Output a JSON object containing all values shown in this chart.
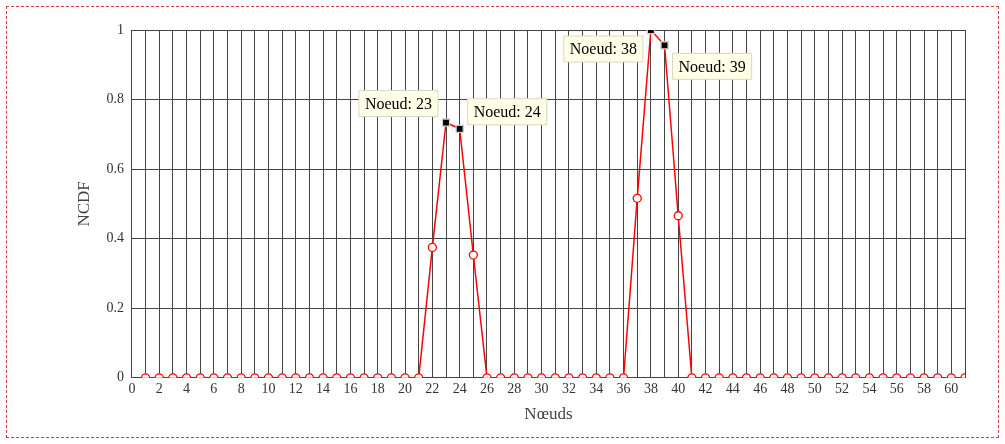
{
  "chart_data": {
    "type": "line",
    "xlabel": "Nœuds",
    "ylabel": "NCDF",
    "x": [
      1,
      2,
      3,
      4,
      5,
      6,
      7,
      8,
      9,
      10,
      11,
      12,
      13,
      14,
      15,
      16,
      17,
      18,
      19,
      20,
      21,
      22,
      23,
      24,
      25,
      26,
      27,
      28,
      29,
      30,
      31,
      32,
      33,
      34,
      35,
      36,
      37,
      38,
      39,
      40,
      41,
      42,
      43,
      44,
      45,
      46,
      47,
      48,
      49,
      50,
      51,
      52,
      53,
      54,
      55,
      56,
      57,
      58,
      59,
      60,
      61
    ],
    "series": [
      {
        "color": "#ff0000",
        "values": [
          0,
          0,
          0,
          0,
          0,
          0,
          0,
          0,
          0,
          0,
          0,
          0,
          0,
          0,
          0,
          0,
          0,
          0,
          0,
          0,
          0,
          0.375,
          0.734,
          0.716,
          0.353,
          0,
          0,
          0,
          0,
          0,
          0,
          0,
          0,
          0,
          0,
          0,
          0.516,
          1,
          0.956,
          0.466,
          0,
          0,
          0,
          0,
          0,
          0,
          0,
          0,
          0,
          0,
          0,
          0,
          0,
          0,
          0,
          0,
          0,
          0,
          0,
          0,
          0
        ]
      }
    ],
    "xlim": [
      0,
      61
    ],
    "xticks": [
      0,
      {
        "value": 1,
        "label": null
      },
      2,
      {
        "value": 3,
        "label": null
      },
      4,
      {
        "value": 5,
        "label": null
      },
      6,
      {
        "value": 7,
        "label": null
      },
      8,
      {
        "value": 9,
        "label": null
      },
      10,
      {
        "value": 11,
        "label": null
      },
      12,
      {
        "value": 13,
        "label": null
      },
      14,
      {
        "value": 15,
        "label": null
      },
      16,
      {
        "value": 17,
        "label": null
      },
      18,
      {
        "value": 19,
        "label": null
      },
      20,
      {
        "value": 21,
        "label": null
      },
      22,
      {
        "value": 23,
        "label": null
      },
      24,
      {
        "value": 25,
        "label": null
      },
      26,
      {
        "value": 27,
        "label": null
      },
      28,
      {
        "value": 29,
        "label": null
      },
      30,
      {
        "value": 31,
        "label": null
      },
      32,
      {
        "value": 33,
        "label": null
      },
      34,
      {
        "value": 35,
        "label": null
      },
      36,
      {
        "value": 37,
        "label": null
      },
      38,
      {
        "value": 39,
        "label": null
      },
      40,
      {
        "value": 41,
        "label": null
      },
      42,
      {
        "value": 43,
        "label": null
      },
      44,
      {
        "value": 45,
        "label": null
      },
      46,
      {
        "value": 47,
        "label": null
      },
      48,
      {
        "value": 49,
        "label": null
      },
      50,
      {
        "value": 51,
        "label": null
      },
      52,
      {
        "value": 53,
        "label": null
      },
      54,
      {
        "value": 55,
        "label": null
      },
      56,
      {
        "value": 57,
        "label": null
      },
      58,
      {
        "value": 59,
        "label": null
      },
      60,
      {
        "value": 61,
        "label": null
      }
    ],
    "ylim": [
      0,
      1
    ],
    "yticks": [
      0,
      0.2,
      0.4,
      0.6,
      0.8,
      1
    ],
    "grid": true,
    "legend": false,
    "marker": "circle",
    "line_style": "solid",
    "annotations": [
      {
        "text": "Noeud: 23",
        "x": 23,
        "y": 0.734
      },
      {
        "text": "Noeud: 24",
        "x": 24,
        "y": 0.716
      },
      {
        "text": "Noeud: 38",
        "x": 38,
        "y": 1
      },
      {
        "text": "Noeud: 39",
        "x": 39,
        "y": 0.956
      }
    ]
  }
}
